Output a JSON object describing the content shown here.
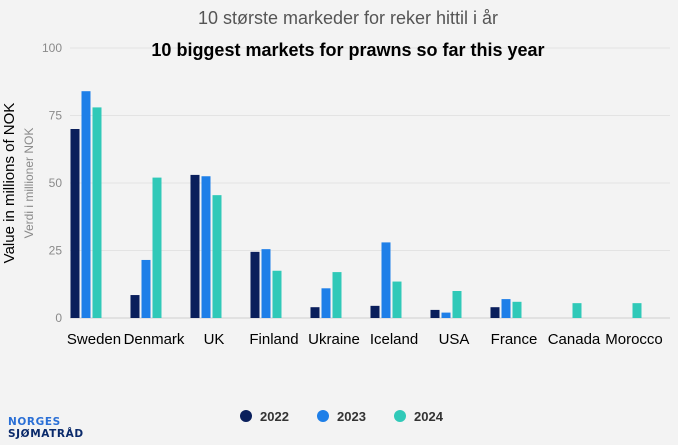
{
  "chart_data": {
    "type": "bar",
    "title_no": "10 største markeder for reker hittil i år",
    "title_en": "10 biggest markets for prawns so far this year",
    "ylabel_en": "Value in millions of NOK",
    "ylabel_no": "Verdi i millioner NOK",
    "xlabel": "",
    "ylim": [
      0,
      100
    ],
    "yticks": [
      "0",
      "25",
      "50",
      "75",
      "100"
    ],
    "categories": [
      "Sweden",
      "Denmark",
      "UK",
      "Finland",
      "Ukraine",
      "Iceland",
      "USA",
      "France",
      "Canada",
      "Morocco"
    ],
    "series": [
      {
        "name": "2022",
        "color": "#0a1f5c",
        "values": [
          70,
          8.5,
          53,
          24.5,
          4,
          4.5,
          3,
          4,
          0,
          0
        ]
      },
      {
        "name": "2023",
        "color": "#1e7fe8",
        "values": [
          84,
          21.5,
          52.5,
          25.5,
          11,
          28,
          2,
          7,
          0,
          0
        ]
      },
      {
        "name": "2024",
        "color": "#30c9b8",
        "values": [
          78,
          52,
          45.5,
          17.5,
          17,
          13.5,
          10,
          6,
          5.5,
          5.5
        ]
      }
    ],
    "grid": true,
    "legend_position": "bottom"
  },
  "logo": {
    "line1": "NORGES",
    "line2": "SJØMATRÅD"
  }
}
